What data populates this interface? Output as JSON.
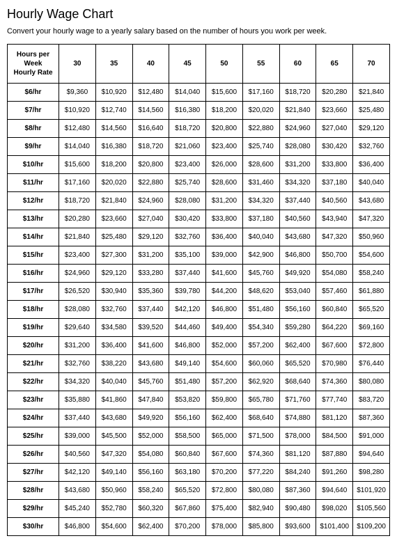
{
  "title": "Hourly Wage Chart",
  "subtitle": "Convert your hourly wage to a yearly salary based on the number of hours you work per week.",
  "table": {
    "corner_label_line1": "Hours per",
    "corner_label_line2": "Week",
    "corner_label_line3": "Hourly Rate",
    "hours_columns": [
      "30",
      "35",
      "40",
      "45",
      "50",
      "55",
      "60",
      "65",
      "70"
    ],
    "rows": [
      {
        "rate": "$6/hr",
        "cells": [
          "$9,360",
          "$10,920",
          "$12,480",
          "$14,040",
          "$15,600",
          "$17,160",
          "$18,720",
          "$20,280",
          "$21,840"
        ]
      },
      {
        "rate": "$7/hr",
        "cells": [
          "$10,920",
          "$12,740",
          "$14,560",
          "$16,380",
          "$18,200",
          "$20,020",
          "$21,840",
          "$23,660",
          "$25,480"
        ]
      },
      {
        "rate": "$8/hr",
        "cells": [
          "$12,480",
          "$14,560",
          "$16,640",
          "$18,720",
          "$20,800",
          "$22,880",
          "$24,960",
          "$27,040",
          "$29,120"
        ]
      },
      {
        "rate": "$9/hr",
        "cells": [
          "$14,040",
          "$16,380",
          "$18,720",
          "$21,060",
          "$23,400",
          "$25,740",
          "$28,080",
          "$30,420",
          "$32,760"
        ]
      },
      {
        "rate": "$10/hr",
        "cells": [
          "$15,600",
          "$18,200",
          "$20,800",
          "$23,400",
          "$26,000",
          "$28,600",
          "$31,200",
          "$33,800",
          "$36,400"
        ]
      },
      {
        "rate": "$11/hr",
        "cells": [
          "$17,160",
          "$20,020",
          "$22,880",
          "$25,740",
          "$28,600",
          "$31,460",
          "$34,320",
          "$37,180",
          "$40,040"
        ]
      },
      {
        "rate": "$12/hr",
        "cells": [
          "$18,720",
          "$21,840",
          "$24,960",
          "$28,080",
          "$31,200",
          "$34,320",
          "$37,440",
          "$40,560",
          "$43,680"
        ]
      },
      {
        "rate": "$13/hr",
        "cells": [
          "$20,280",
          "$23,660",
          "$27,040",
          "$30,420",
          "$33,800",
          "$37,180",
          "$40,560",
          "$43,940",
          "$47,320"
        ]
      },
      {
        "rate": "$14/hr",
        "cells": [
          "$21,840",
          "$25,480",
          "$29,120",
          "$32,760",
          "$36,400",
          "$40,040",
          "$43,680",
          "$47,320",
          "$50,960"
        ]
      },
      {
        "rate": "$15/hr",
        "cells": [
          "$23,400",
          "$27,300",
          "$31,200",
          "$35,100",
          "$39,000",
          "$42,900",
          "$46,800",
          "$50,700",
          "$54,600"
        ]
      },
      {
        "rate": "$16/hr",
        "cells": [
          "$24,960",
          "$29,120",
          "$33,280",
          "$37,440",
          "$41,600",
          "$45,760",
          "$49,920",
          "$54,080",
          "$58,240"
        ]
      },
      {
        "rate": "$17/hr",
        "cells": [
          "$26,520",
          "$30,940",
          "$35,360",
          "$39,780",
          "$44,200",
          "$48,620",
          "$53,040",
          "$57,460",
          "$61,880"
        ]
      },
      {
        "rate": "$18/hr",
        "cells": [
          "$28,080",
          "$32,760",
          "$37,440",
          "$42,120",
          "$46,800",
          "$51,480",
          "$56,160",
          "$60,840",
          "$65,520"
        ]
      },
      {
        "rate": "$19/hr",
        "cells": [
          "$29,640",
          "$34,580",
          "$39,520",
          "$44,460",
          "$49,400",
          "$54,340",
          "$59,280",
          "$64,220",
          "$69,160"
        ]
      },
      {
        "rate": "$20/hr",
        "cells": [
          "$31,200",
          "$36,400",
          "$41,600",
          "$46,800",
          "$52,000",
          "$57,200",
          "$62,400",
          "$67,600",
          "$72,800"
        ]
      },
      {
        "rate": "$21/hr",
        "cells": [
          "$32,760",
          "$38,220",
          "$43,680",
          "$49,140",
          "$54,600",
          "$60,060",
          "$65,520",
          "$70,980",
          "$76,440"
        ]
      },
      {
        "rate": "$22/hr",
        "cells": [
          "$34,320",
          "$40,040",
          "$45,760",
          "$51,480",
          "$57,200",
          "$62,920",
          "$68,640",
          "$74,360",
          "$80,080"
        ]
      },
      {
        "rate": "$23/hr",
        "cells": [
          "$35,880",
          "$41,860",
          "$47,840",
          "$53,820",
          "$59,800",
          "$65,780",
          "$71,760",
          "$77,740",
          "$83,720"
        ]
      },
      {
        "rate": "$24/hr",
        "cells": [
          "$37,440",
          "$43,680",
          "$49,920",
          "$56,160",
          "$62,400",
          "$68,640",
          "$74,880",
          "$81,120",
          "$87,360"
        ]
      },
      {
        "rate": "$25/hr",
        "cells": [
          "$39,000",
          "$45,500",
          "$52,000",
          "$58,500",
          "$65,000",
          "$71,500",
          "$78,000",
          "$84,500",
          "$91,000"
        ]
      },
      {
        "rate": "$26/hr",
        "cells": [
          "$40,560",
          "$47,320",
          "$54,080",
          "$60,840",
          "$67,600",
          "$74,360",
          "$81,120",
          "$87,880",
          "$94,640"
        ]
      },
      {
        "rate": "$27/hr",
        "cells": [
          "$42,120",
          "$49,140",
          "$56,160",
          "$63,180",
          "$70,200",
          "$77,220",
          "$84,240",
          "$91,260",
          "$98,280"
        ]
      },
      {
        "rate": "$28/hr",
        "cells": [
          "$43,680",
          "$50,960",
          "$58,240",
          "$65,520",
          "$72,800",
          "$80,080",
          "$87,360",
          "$94,640",
          "$101,920"
        ]
      },
      {
        "rate": "$29/hr",
        "cells": [
          "$45,240",
          "$52,780",
          "$60,320",
          "$67,860",
          "$75,400",
          "$82,940",
          "$90,480",
          "$98,020",
          "$105,560"
        ]
      },
      {
        "rate": "$30/hr",
        "cells": [
          "$46,800",
          "$54,600",
          "$62,400",
          "$70,200",
          "$78,000",
          "$85,800",
          "$93,600",
          "$101,400",
          "$109,200"
        ]
      }
    ]
  }
}
